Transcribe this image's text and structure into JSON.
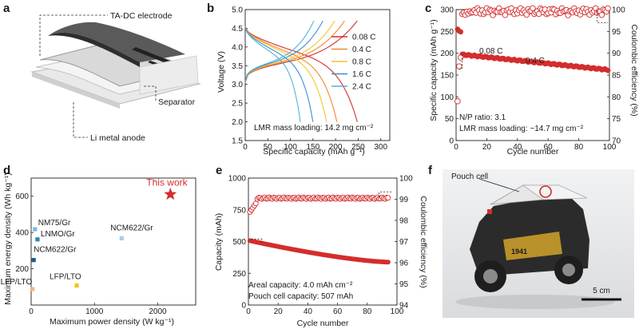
{
  "panels": {
    "a": {
      "label": "a",
      "electrode": "TA-DC electrode",
      "separator": "Separator",
      "anode": "Li metal anode"
    },
    "b": {
      "label": "b"
    },
    "c": {
      "label": "c"
    },
    "d": {
      "label": "d"
    },
    "e": {
      "label": "e"
    },
    "f": {
      "label": "f",
      "pouch": "Pouch cell",
      "scale": "5 cm"
    }
  },
  "colors": {
    "red": "#d42d2d",
    "orange": "#f08a2c",
    "yellow": "#f2c629",
    "blue": "#3c8ed2",
    "lightblue": "#4fb3de"
  },
  "chart_data": [
    {
      "id": "b",
      "type": "line",
      "xlabel": "Specific capacity (mAh g⁻¹)",
      "ylabel": "Voltage (V)",
      "xlim": [
        0,
        320
      ],
      "ylim": [
        1.5,
        5.0
      ],
      "xticks": [
        "0",
        "50",
        "100",
        "150",
        "200",
        "250",
        "300"
      ],
      "yticks": [
        "1.5",
        "2.0",
        "2.5",
        "3.0",
        "3.5",
        "4.0",
        "4.5",
        "5.0"
      ],
      "annotation": "LMR mass loading: 14.2 mg cm⁻²",
      "series": [
        {
          "name": "0.08 C",
          "color": "#d42d2d",
          "charge_end": 248,
          "discharge_end": 248
        },
        {
          "name": "0.4 C",
          "color": "#f08a2c",
          "charge_end": 220,
          "discharge_end": 203
        },
        {
          "name": "0.8 C",
          "color": "#f2c629",
          "charge_end": 198,
          "discharge_end": 180
        },
        {
          "name": "1.6 C",
          "color": "#3c8ed2",
          "charge_end": 172,
          "discharge_end": 150
        },
        {
          "name": "2.4 C",
          "color": "#4fb3de",
          "charge_end": 152,
          "discharge_end": 122
        }
      ]
    },
    {
      "id": "c",
      "type": "scatter",
      "xlabel": "Cycle number",
      "ylabel": "Specific capacity (mAh g⁻¹)",
      "y2label": "Coulombic efficiency (%)",
      "xlim": [
        0,
        100
      ],
      "ylim": [
        0,
        300
      ],
      "y2lim": [
        70,
        100
      ],
      "xticks": [
        "0",
        "20",
        "40",
        "60",
        "80",
        "100"
      ],
      "yticks": [
        "0",
        "50",
        "100",
        "150",
        "200",
        "250",
        "300"
      ],
      "y2ticks": [
        "70",
        "75",
        "80",
        "85",
        "90",
        "95",
        "100"
      ],
      "labels": {
        "low_rate": "0.08 C",
        "high_rate": "0.4 C"
      },
      "annotations": [
        "N/P ratio: 3.1",
        "LMR mass loading: ~14.7 mg cm⁻²"
      ],
      "capacity_low_rate": [
        {
          "x": 1,
          "y": 255
        },
        {
          "x": 2,
          "y": 251
        },
        {
          "x": 3,
          "y": 249
        }
      ],
      "capacity_high_rate": {
        "x_start": 4,
        "x_end": 99,
        "y_start": 197,
        "y_end": 162
      },
      "ce_early": [
        {
          "x": 1,
          "y": 79
        },
        {
          "x": 2,
          "y": 87
        },
        {
          "x": 3,
          "y": 89
        },
        {
          "x": 4,
          "y": 99
        },
        {
          "x": 5,
          "y": 99.3
        },
        {
          "x": 6,
          "y": 98.8
        },
        {
          "x": 7,
          "y": 99.5
        },
        {
          "x": 8,
          "y": 99.1
        },
        {
          "x": 9,
          "y": 99.6
        },
        {
          "x": 10,
          "y": 99.3
        }
      ],
      "ce_steady_mean": 99.6
    },
    {
      "id": "d",
      "type": "scatter",
      "xlabel": "Maximum power density (W kg⁻¹)",
      "ylabel": "Maximum energy density (Wh kg⁻¹)",
      "xlim": [
        0,
        2600
      ],
      "ylim": [
        0,
        700
      ],
      "xticks": [
        "0",
        "1000",
        "2000"
      ],
      "yticks": [
        "200",
        "400",
        "600"
      ],
      "points": [
        {
          "name": "This work",
          "x": 2200,
          "y": 610,
          "color": "#d42d2d",
          "marker": "star"
        },
        {
          "name": "NM75/Gr",
          "x": 60,
          "y": 418,
          "color": "#7fb9e0",
          "marker": "square"
        },
        {
          "name": "LNMO/Gr",
          "x": 100,
          "y": 362,
          "color": "#2f86b5",
          "marker": "square"
        },
        {
          "name": "NCM622/Gr",
          "x": 1430,
          "y": 368,
          "color": "#a9cce8",
          "marker": "square"
        },
        {
          "name": "NCM622/Gr",
          "x": 40,
          "y": 248,
          "color": "#1f5d8c",
          "marker": "square"
        },
        {
          "name": "LFP/LTO",
          "x": 20,
          "y": 88,
          "color": "#f4b380",
          "marker": "square"
        },
        {
          "name": "LFP/LTO",
          "x": 720,
          "y": 108,
          "color": "#f3c11e",
          "marker": "square"
        }
      ]
    },
    {
      "id": "e",
      "type": "scatter",
      "xlabel": "Cycle number",
      "ylabel": "Capacity (mAh)",
      "y2label": "Coulombic efficiency (%)",
      "xlim": [
        0,
        100
      ],
      "ylim": [
        0,
        1000
      ],
      "y2lim": [
        94,
        100
      ],
      "xticks": [
        "0",
        "20",
        "40",
        "60",
        "80",
        "100"
      ],
      "yticks": [
        "0",
        "250",
        "500",
        "750",
        "1000"
      ],
      "y2ticks": [
        "94",
        "95",
        "96",
        "97",
        "98",
        "99",
        "100"
      ],
      "annotations": [
        "Areal capacity: 4.0 mAh cm⁻²",
        "Pouch cell capacity: 507 mAh"
      ],
      "capacity": {
        "x_start": 1,
        "x_end": 94,
        "y_start": 507,
        "y_end": 338
      },
      "ce_early": [
        {
          "x": 1,
          "y": 98.4
        },
        {
          "x": 2,
          "y": 98.5
        },
        {
          "x": 3,
          "y": 98.6
        },
        {
          "x": 4,
          "y": 98.7
        },
        {
          "x": 5,
          "y": 98.8
        }
      ],
      "ce_steady_mean": 99.05
    }
  ]
}
